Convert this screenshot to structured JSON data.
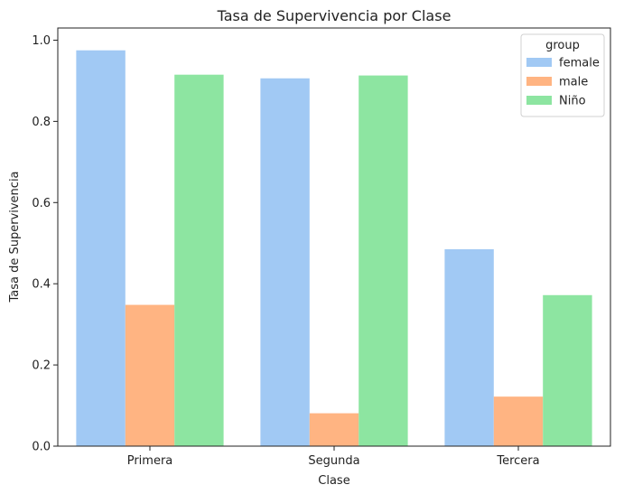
{
  "chart_data": {
    "type": "bar",
    "title": "Tasa de Supervivencia por Clase",
    "xlabel": "Clase",
    "ylabel": "Tasa de Supervivencia",
    "categories": [
      "Primera",
      "Segunda",
      "Tercera"
    ],
    "ylim": [
      0,
      1.03
    ],
    "yticks": [
      0.0,
      0.2,
      0.4,
      0.6,
      0.8,
      1.0
    ],
    "ytick_labels": [
      "0.0",
      "0.2",
      "0.4",
      "0.6",
      "0.8",
      "1.0"
    ],
    "legend": {
      "title": "group",
      "placement": "top-right"
    },
    "grid": false,
    "series": [
      {
        "name": "female",
        "color": "#a1c9f4",
        "values": [
          0.975,
          0.906,
          0.485
        ]
      },
      {
        "name": "male",
        "color": "#ffb482",
        "values": [
          0.348,
          0.081,
          0.122
        ]
      },
      {
        "name": "Niño",
        "color": "#8de5a1",
        "values": [
          0.915,
          0.913,
          0.372
        ]
      }
    ]
  }
}
